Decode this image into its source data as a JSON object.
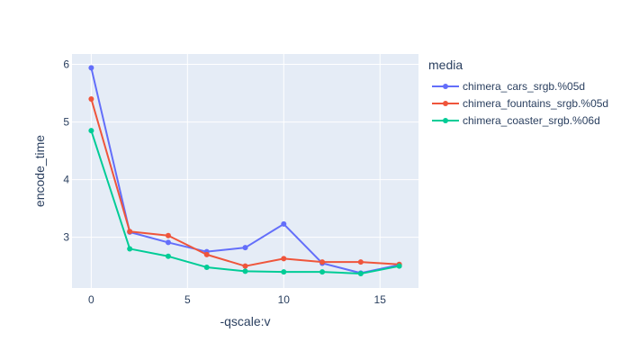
{
  "chart_data": {
    "type": "line",
    "xlabel": "-qscale:v",
    "ylabel": "encode_time",
    "xlim": [
      -1.0,
      17.0
    ],
    "ylim": [
      2.12,
      6.18
    ],
    "xticks": [
      0,
      5,
      10,
      15
    ],
    "yticks": [
      3,
      4,
      5,
      6
    ],
    "grid": true,
    "legend": {
      "title": "media",
      "placement": "right"
    },
    "series": [
      {
        "name": "chimera_cars_srgb.%05d",
        "color": "#636efa",
        "x": [
          0,
          2,
          4,
          6,
          8,
          10,
          12,
          14,
          16
        ],
        "y": [
          5.94,
          3.09,
          2.91,
          2.75,
          2.82,
          3.23,
          2.55,
          2.38,
          2.52
        ]
      },
      {
        "name": "chimera_fountains_srgb.%05d",
        "color": "#ef553b",
        "x": [
          0,
          2,
          4,
          6,
          8,
          10,
          12,
          14,
          16
        ],
        "y": [
          5.4,
          3.1,
          3.03,
          2.7,
          2.5,
          2.63,
          2.57,
          2.57,
          2.53
        ]
      },
      {
        "name": "chimera_coaster_srgb.%06d",
        "color": "#00cc96",
        "x": [
          0,
          2,
          4,
          6,
          8,
          10,
          12,
          14,
          16
        ],
        "y": [
          4.85,
          2.8,
          2.67,
          2.48,
          2.41,
          2.4,
          2.4,
          2.37,
          2.5
        ]
      }
    ]
  }
}
